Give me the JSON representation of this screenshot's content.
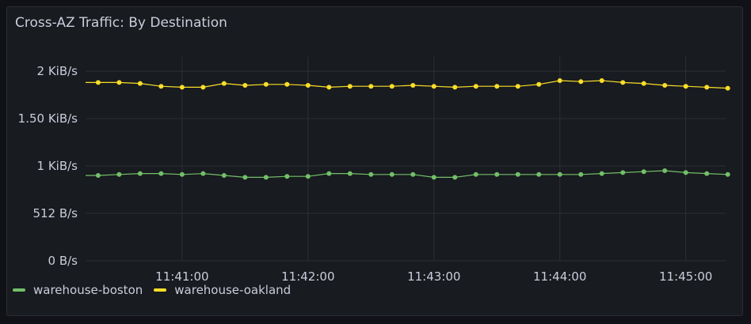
{
  "panel": {
    "title": "Cross-AZ Traffic: By Destination"
  },
  "chart_data": {
    "type": "line",
    "title": "Cross-AZ Traffic: By Destination",
    "xlabel": "",
    "ylabel": "",
    "x_unit": "time (HH:MM:SS)",
    "x": [
      "11:40:20",
      "11:40:30",
      "11:40:40",
      "11:40:50",
      "11:41:00",
      "11:41:10",
      "11:41:20",
      "11:41:30",
      "11:41:40",
      "11:41:50",
      "11:42:00",
      "11:42:10",
      "11:42:20",
      "11:42:30",
      "11:42:40",
      "11:42:50",
      "11:43:00",
      "11:43:10",
      "11:43:20",
      "11:43:30",
      "11:43:40",
      "11:43:50",
      "11:44:00",
      "11:44:10",
      "11:44:20",
      "11:44:30",
      "11:44:40",
      "11:44:50",
      "11:45:00",
      "11:45:10",
      "11:45:20"
    ],
    "y_unit": "KiB/s",
    "ylim": [
      0,
      2.2
    ],
    "y_ticks": [
      {
        "value": 0,
        "label": "0 B/s"
      },
      {
        "value": 0.5,
        "label": "512 B/s"
      },
      {
        "value": 1,
        "label": "1 KiB/s"
      },
      {
        "value": 1.5,
        "label": "1.50 KiB/s"
      },
      {
        "value": 2,
        "label": "2 KiB/s"
      }
    ],
    "x_ticks": [
      "11:41:00",
      "11:42:00",
      "11:43:00",
      "11:44:00",
      "11:45:00"
    ],
    "grid": true,
    "legend_position": "bottom-left",
    "series": [
      {
        "name": "warehouse-boston",
        "color": "#73bf69",
        "values": [
          0.9,
          0.91,
          0.92,
          0.92,
          0.91,
          0.92,
          0.9,
          0.88,
          0.88,
          0.89,
          0.89,
          0.92,
          0.92,
          0.91,
          0.91,
          0.91,
          0.88,
          0.88,
          0.91,
          0.91,
          0.91,
          0.91,
          0.91,
          0.91,
          0.92,
          0.93,
          0.94,
          0.95,
          0.93,
          0.92,
          0.91
        ]
      },
      {
        "name": "warehouse-oakland",
        "color": "#fade2a",
        "values": [
          1.88,
          1.88,
          1.87,
          1.84,
          1.83,
          1.83,
          1.87,
          1.85,
          1.86,
          1.86,
          1.85,
          1.83,
          1.84,
          1.84,
          1.84,
          1.85,
          1.84,
          1.83,
          1.84,
          1.84,
          1.84,
          1.86,
          1.9,
          1.89,
          1.9,
          1.88,
          1.87,
          1.85,
          1.84,
          1.83,
          1.82
        ]
      }
    ]
  }
}
